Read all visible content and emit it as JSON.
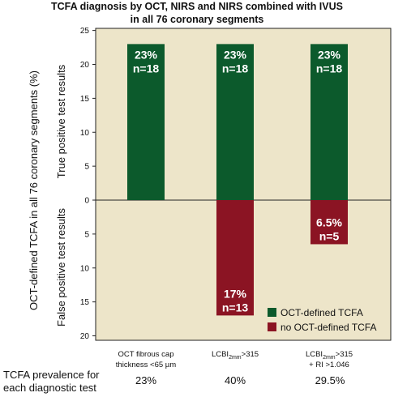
{
  "title_line1": "TCFA diagnosis by OCT, NIRS and NIRS combined with IVUS",
  "title_line2": "in all 76 coronary segments",
  "chart_data": {
    "type": "bar",
    "title": "TCFA diagnosis by OCT, NIRS and NIRS combined with IVUS in all 76 coronary segments",
    "ylabel": "OCT-defined TCFA in all 76 coronary segments (%)",
    "ylabel_upper": "True positive test results",
    "ylabel_lower": "False positive test results",
    "ylim_true": [
      0,
      25
    ],
    "ylim_false": [
      0,
      20
    ],
    "yticks_true": [
      25,
      20,
      15,
      10,
      5,
      0
    ],
    "yticks_false": [
      5,
      10,
      15,
      20
    ],
    "categories": [
      {
        "line1": "OCT fibrous cap",
        "line2": "thickness <65 µm"
      },
      {
        "line1": "LCBI2mm>315",
        "line2": ""
      },
      {
        "line1": "LCBI2mm>315",
        "line2": "+ RI >1.046"
      }
    ],
    "series": [
      {
        "name": "OCT-defined TCFA",
        "color": "#0c5a2c",
        "direction": "up",
        "values": [
          23,
          23,
          23
        ],
        "pct_labels": [
          "23%",
          "23%",
          "23%"
        ],
        "n_labels": [
          "n=18",
          "n=18",
          "n=18"
        ]
      },
      {
        "name": "no OCT-defined TCFA",
        "color": "#8b1423",
        "direction": "down",
        "values": [
          0,
          17,
          6.5
        ],
        "pct_labels": [
          "",
          "17%",
          "6.5%"
        ],
        "n_labels": [
          "",
          "n=13",
          "n=5"
        ]
      }
    ],
    "background": "#ede5c9",
    "legend_position": "bottom-right"
  },
  "prevalence": {
    "label_line1": "TCFA prevalence for",
    "label_line2": "each diagnostic test",
    "values": [
      "23%",
      "40%",
      "29.5%"
    ]
  }
}
